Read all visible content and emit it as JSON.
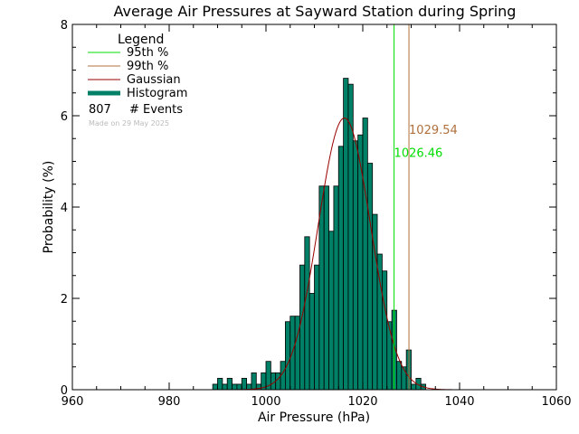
{
  "chart_data": {
    "type": "bar",
    "title": "Average Air Pressures at Sayward Station during Spring",
    "xlabel": "Air Pressure (hPa)",
    "ylabel": "Probability (%)",
    "xlim": [
      960,
      1060
    ],
    "ylim": [
      0,
      8
    ],
    "x_ticks": [
      "960",
      "980",
      "1000",
      "1020",
      "1040",
      "1060"
    ],
    "y_ticks": [
      "0",
      "2",
      "4",
      "6",
      "8"
    ],
    "bin_width": 1,
    "bins": [
      {
        "x": 989,
        "y": 0.12
      },
      {
        "x": 990,
        "y": 0.25
      },
      {
        "x": 991,
        "y": 0.12
      },
      {
        "x": 992,
        "y": 0.25
      },
      {
        "x": 993,
        "y": 0.12
      },
      {
        "x": 994,
        "y": 0.12
      },
      {
        "x": 995,
        "y": 0.25
      },
      {
        "x": 996,
        "y": 0.12
      },
      {
        "x": 997,
        "y": 0.37
      },
      {
        "x": 998,
        "y": 0.12
      },
      {
        "x": 999,
        "y": 0.37
      },
      {
        "x": 1000,
        "y": 0.62
      },
      {
        "x": 1001,
        "y": 0.37
      },
      {
        "x": 1002,
        "y": 0.37
      },
      {
        "x": 1003,
        "y": 0.62
      },
      {
        "x": 1004,
        "y": 1.49
      },
      {
        "x": 1005,
        "y": 1.61
      },
      {
        "x": 1006,
        "y": 1.61
      },
      {
        "x": 1007,
        "y": 2.73
      },
      {
        "x": 1008,
        "y": 3.35
      },
      {
        "x": 1009,
        "y": 2.11
      },
      {
        "x": 1010,
        "y": 2.73
      },
      {
        "x": 1011,
        "y": 4.46
      },
      {
        "x": 1012,
        "y": 4.46
      },
      {
        "x": 1013,
        "y": 3.47
      },
      {
        "x": 1014,
        "y": 4.46
      },
      {
        "x": 1015,
        "y": 5.33
      },
      {
        "x": 1016,
        "y": 6.82
      },
      {
        "x": 1017,
        "y": 6.69
      },
      {
        "x": 1018,
        "y": 5.45
      },
      {
        "x": 1019,
        "y": 5.58
      },
      {
        "x": 1020,
        "y": 5.95
      },
      {
        "x": 1021,
        "y": 4.96
      },
      {
        "x": 1022,
        "y": 3.84
      },
      {
        "x": 1023,
        "y": 2.97
      },
      {
        "x": 1024,
        "y": 2.6
      },
      {
        "x": 1025,
        "y": 1.49
      },
      {
        "x": 1026,
        "y": 1.74
      },
      {
        "x": 1027,
        "y": 0.62
      },
      {
        "x": 1028,
        "y": 0.5
      },
      {
        "x": 1029,
        "y": 0.87
      },
      {
        "x": 1030,
        "y": 0.12
      },
      {
        "x": 1031,
        "y": 0.25
      },
      {
        "x": 1032,
        "y": 0.12
      }
    ],
    "gaussian": {
      "mean": 1016.2,
      "stddev": 5.4,
      "peak": 5.95,
      "color": "#990000"
    },
    "percentiles": [
      {
        "name": "95th %",
        "value": 1026.46,
        "label": "1026.46",
        "color": "#00dd00"
      },
      {
        "name": "99th %",
        "value": 1029.54,
        "label": "1029.54",
        "color": "#b0703c"
      }
    ],
    "histogram_color": "#008066",
    "legend": {
      "title": "Legend",
      "placement": "top-left",
      "items": [
        {
          "label": "95th %",
          "kind": "line",
          "color": "#00dd00"
        },
        {
          "label": "99th %",
          "kind": "line",
          "color": "#b0703c"
        },
        {
          "label": "Gaussian",
          "kind": "line",
          "color": "#990000"
        },
        {
          "label": "Histogram",
          "kind": "thick",
          "color": "#008066"
        }
      ],
      "events_count": "807",
      "events_label": "# Events",
      "made_on": "Made on 29 May 2025"
    },
    "grid": false
  }
}
